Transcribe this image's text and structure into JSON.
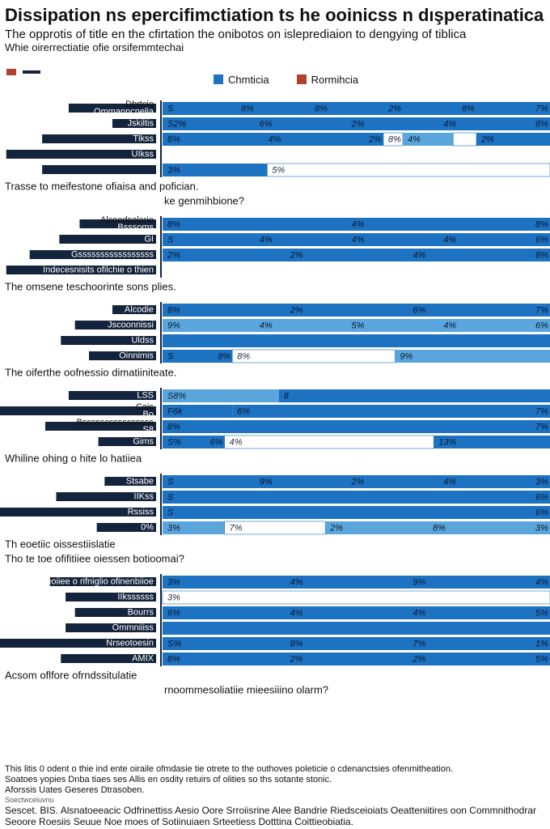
{
  "chart_data": {
    "type": "bar",
    "title": "Dissipation ns epercifimctiation ts he ooinicss n dışperatinatica he",
    "subtitle": "The opprotis of title en the cfirtation the onibotos on isleprediaion to dengying of tiblica",
    "subtitle2": "Whie oirerrectiatie ofie orsifemmtechai",
    "legend": [
      {
        "name": "Chmticia",
        "color": "#1d72c2"
      },
      {
        "name": "Rormihcia",
        "color": "#b1402e"
      }
    ],
    "axis": {
      "min": 0,
      "max": 100
    },
    "groups": [
      {
        "notes": [
          {
            "text": "Trasse to meifestone ofiaisa and pofician.",
            "align": "left"
          },
          {
            "text": "ke genmihbione?",
            "align": "mid"
          }
        ],
        "rows": [
          {
            "labels": [
              "Dbrtcio",
              "Ommanncnelia"
            ],
            "dark": 56,
            "segments": [
              {
                "w": 100,
                "shade": "main",
                "labels": [
                  "S",
                  "8%",
                  "8%",
                  "2%",
                  "8%",
                  "7%"
                ]
              }
            ]
          },
          {
            "labels": [
              "Jskiltis"
            ],
            "dark": 28,
            "segments": [
              {
                "w": 100,
                "shade": "main",
                "labels": [
                  "S2%",
                  "6%",
                  "2%",
                  "4%",
                  "8%"
                ]
              }
            ]
          },
          {
            "labels": [
              "Tlkss"
            ],
            "dark": 73,
            "segments": [
              {
                "w": 57,
                "shade": "main",
                "labels": [
                  "8%",
                  "4%",
                  "2%"
                ]
              },
              {
                "w": 5,
                "shade": "gap",
                "labels": [
                  "8%"
                ]
              },
              {
                "w": 13,
                "shade": "light",
                "labels": [
                  "4%"
                ]
              },
              {
                "w": 6,
                "shade": "gap",
                "labels": []
              },
              {
                "w": 19,
                "shade": "main",
                "labels": [
                  "2%"
                ]
              }
            ]
          },
          {
            "labels": [
              "UIkss"
            ],
            "dark": 96,
            "segments": []
          },
          {
            "labels": [],
            "dark": 73,
            "segments": [
              {
                "w": 27,
                "shade": "main",
                "labels": [
                  "3%"
                ]
              },
              {
                "w": 78,
                "shade": "gap",
                "labels": [
                  "5%"
                ]
              },
              {
                "w": 13,
                "shade": "light",
                "labels": [
                  "5%"
                ]
              },
              {
                "w": 17,
                "shade": "main",
                "labels": []
              }
            ]
          }
        ]
      },
      {
        "notes": [
          {
            "text": "The omsene teschoorinte sons plies.",
            "align": "left"
          }
        ],
        "rows": [
          {
            "labels": [
              "Alcoedsolerie",
              "Bsssoms"
            ],
            "dark": 49,
            "segments": [
              {
                "w": 100,
                "shade": "main",
                "labels": [
                  "8%",
                  "4%",
                  "8%"
                ]
              }
            ]
          },
          {
            "labels": [
              "GI"
            ],
            "dark": 62,
            "segments": [
              {
                "w": 100,
                "shade": "main",
                "labels": [
                  "S",
                  "4%",
                  "4%",
                  "4%",
                  "6%"
                ]
              }
            ]
          },
          {
            "labels": [
              "Gsssssssssssssssss"
            ],
            "dark": 81,
            "segments": [
              {
                "w": 100,
                "shade": "main",
                "labels": [
                  "2%",
                  "2%",
                  "4%",
                  "8%"
                ]
              }
            ]
          },
          {
            "labels": [
              "Indecesnisits ofilchie o thien"
            ],
            "dark": 96,
            "segments": []
          }
        ]
      },
      {
        "notes": [
          {
            "text": "The oiferthe oofnessio dimatiiniteate.",
            "align": "left"
          }
        ],
        "rows": [
          {
            "labels": [
              "Alcodie"
            ],
            "dark": 28,
            "segments": [
              {
                "w": 100,
                "shade": "main",
                "labels": [
                  "8%",
                  "2%",
                  "6%",
                  "7%"
                ]
              }
            ]
          },
          {
            "labels": [
              "Jscoonnissi"
            ],
            "dark": 52,
            "segments": [
              {
                "w": 100,
                "shade": "light",
                "labels": [
                  "9%",
                  "4%",
                  "5%",
                  "4%",
                  "6%"
                ]
              }
            ]
          },
          {
            "labels": [
              "Uldss"
            ],
            "dark": 61,
            "segments": [
              {
                "w": 100,
                "shade": "main",
                "labels": []
              }
            ]
          },
          {
            "labels": [
              "Oinnimis"
            ],
            "dark": 43,
            "segments": [
              {
                "w": 18,
                "shade": "main",
                "labels": [
                  "S",
                  "8%"
                ]
              },
              {
                "w": 42,
                "shade": "gap",
                "labels": [
                  "8%"
                ]
              },
              {
                "w": 40,
                "shade": "light",
                "labels": [
                  "9%"
                ]
              }
            ]
          }
        ]
      },
      {
        "notes": [
          {
            "text": "Whiline ohing o hite lo hatiiea",
            "align": "left"
          }
        ],
        "rows": [
          {
            "labels": [
              "LSS"
            ],
            "dark": 56,
            "segments": [
              {
                "w": 30,
                "shade": "light",
                "labels": [
                  "S8%"
                ]
              },
              {
                "w": 70,
                "shade": "main",
                "labels": [
                  "8"
                ]
              }
            ]
          },
          {
            "labels": [
              "Cais",
              "Bo"
            ],
            "dark": 100,
            "segments": [
              {
                "w": 18,
                "shade": "main",
                "labels": [
                  "F6k"
                ]
              },
              {
                "w": 82,
                "shade": "main",
                "labels": [
                  "6%",
                  "7%"
                ]
              }
            ]
          },
          {
            "labels": [
              "Bssssscssssssssss",
              "S8"
            ],
            "dark": 71,
            "segments": [
              {
                "w": 100,
                "shade": "main",
                "labels": [
                  "8%",
                  "7%"
                ]
              }
            ]
          },
          {
            "labels": [
              "Gims"
            ],
            "dark": 37,
            "segments": [
              {
                "w": 16,
                "shade": "main",
                "labels": [
                  "S%",
                  "6%"
                ]
              },
              {
                "w": 54,
                "shade": "gap",
                "labels": [
                  "4%"
                ]
              },
              {
                "w": 30,
                "shade": "main",
                "labels": [
                  "13%"
                ]
              }
            ]
          }
        ]
      },
      {
        "notes": [
          {
            "text": "Th eoetiic oissestiislatie",
            "align": "left"
          },
          {
            "text": "Tho te toe ofifitiiee oiessen botioomai?",
            "align": "left"
          }
        ],
        "rows": [
          {
            "labels": [
              "Stsabe"
            ],
            "dark": 33,
            "segments": [
              {
                "w": 100,
                "shade": "main",
                "labels": [
                  "S",
                  "9%",
                  "2%",
                  "4%",
                  "3%"
                ]
              }
            ]
          },
          {
            "labels": [
              "IIKss"
            ],
            "dark": 64,
            "segments": [
              {
                "w": 100,
                "shade": "main",
                "labels": [
                  "S",
                  "6%"
                ]
              }
            ]
          },
          {
            "labels": [
              "Rssiss"
            ],
            "dark": 100,
            "segments": [
              {
                "w": 100,
                "shade": "main",
                "labels": [
                  "S",
                  "6%"
                ]
              }
            ]
          },
          {
            "labels": [
              "0%"
            ],
            "dark": 38,
            "segments": [
              {
                "w": 16,
                "shade": "light",
                "labels": [
                  "3%"
                ]
              },
              {
                "w": 26,
                "shade": "gap",
                "labels": [
                  "7%"
                ]
              },
              {
                "w": 58,
                "shade": "light",
                "labels": [
                  "2%",
                  "8%",
                  "3%"
                ]
              }
            ]
          }
        ]
      },
      {
        "notes": [
          {
            "text": "Acsom oflfore ofrndssitulatie",
            "align": "left"
          },
          {
            "text": "rnoommesoliatiie mieesiiino olarm?",
            "align": "mid"
          }
        ],
        "rows": [
          {
            "labels": [
              "The joeoiiee o rifniglio ofinenbiioe"
            ],
            "dark": 68,
            "segments": [
              {
                "w": 100,
                "shade": "main",
                "labels": [
                  "3%",
                  "4%",
                  "9%",
                  "4%"
                ]
              }
            ]
          },
          {
            "labels": [
              "IIkssssss"
            ],
            "dark": 58,
            "segments": [
              {
                "w": 100,
                "shade": "gap",
                "labels": [
                  "3%"
                ]
              }
            ]
          },
          {
            "labels": [
              "Bourrs"
            ],
            "dark": 52,
            "segments": [
              {
                "w": 100,
                "shade": "main",
                "labels": [
                  "6%",
                  "4%",
                  "4%",
                  "5%"
                ]
              }
            ]
          },
          {
            "labels": [
              "Ommniiiss"
            ],
            "dark": 58,
            "segments": [
              {
                "w": 100,
                "shade": "main",
                "labels": []
              }
            ]
          },
          {
            "labels": [
              "Nrseotoesin"
            ],
            "dark": 100,
            "segments": [
              {
                "w": 100,
                "shade": "main",
                "labels": [
                  "S%",
                  "8%",
                  "7%",
                  "1%"
                ]
              }
            ]
          },
          {
            "labels": [
              "AMIX"
            ],
            "dark": 61,
            "segments": [
              {
                "w": 100,
                "shade": "main",
                "labels": [
                  "8%",
                  "2%",
                  "2%",
                  "5%"
                ]
              }
            ]
          }
        ]
      }
    ]
  },
  "footer": {
    "line1": "This litis 0 odent o thie ind ente oiraile ofmdasie tie otrete to the outhoves poleticie o cdenanctsies ofenmitheation.",
    "line2": "Soatoes yopies Dnba tiaes ses Allis en osdity retuirs of olities so ths sotante stonic.",
    "line3": "Aforssis Uates Geseres Dtrasoben.",
    "line4": "Soectwceiuvnu",
    "line5": "Sescet. BIS. Alsnatoeeacic Odfrinettiss Aesio Oore Srroiisrine Alee Bandrie Riedsceioiats Oeatteniitires oon Commnithodrar",
    "line6": "Seoore Roesiis Seuue Noe moes of Sotiinuiaen Srteetiess Dotttina Coittieobiatia."
  }
}
